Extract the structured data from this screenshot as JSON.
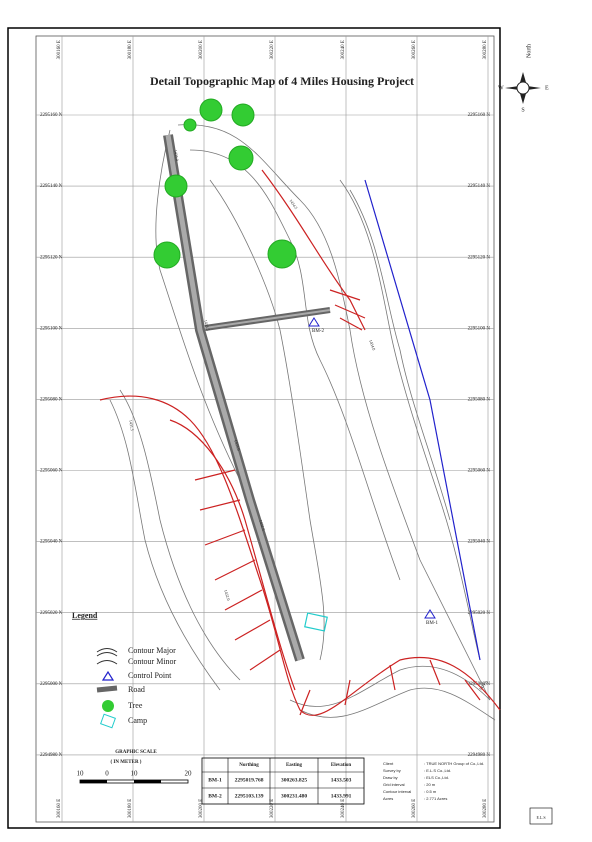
{
  "title": "Detail Topographic Map of 4 Miles Housing Project",
  "compass": {
    "north": "North",
    "south": "S",
    "east": "E",
    "west": "W"
  },
  "northings": [
    "2295160 N",
    "2295140 N",
    "2295120 N",
    "2295100 N",
    "2295080 N",
    "2295060 N",
    "2295040 N",
    "2295020 N",
    "2295000 N",
    "2294980 N"
  ],
  "eastings": [
    "300160 E",
    "300180 E",
    "300200 E",
    "300220 E",
    "300240 E",
    "300260 E",
    "300280 E"
  ],
  "markers": {
    "bm1": "BM-1",
    "bm2": "BM-2"
  },
  "contour_labels": [
    "1435.0",
    "1434.5",
    "1434.0",
    "1433.5",
    "1433.0",
    "1432.5",
    "1432.0",
    "1431.5",
    "1431.0"
  ],
  "legend": {
    "title": "Legend",
    "items": [
      "Contour Major",
      "Contour Minor",
      "Control Point",
      "Road",
      "Tree",
      "Camp"
    ]
  },
  "scale": {
    "title": "GRAPHIC SCALE",
    "unit": "( IN METER )",
    "labels": [
      "10",
      "0",
      "10",
      "20"
    ]
  },
  "table": {
    "header": [
      "Northing",
      "Easting",
      "Elevation"
    ],
    "rows": [
      [
        "BM-1",
        "2295019.768",
        "300263.825",
        "1433.503"
      ],
      [
        "BM-2",
        "2295103.139",
        "300231.480",
        "1433.991"
      ]
    ]
  },
  "info": [
    [
      "Client",
      ": TRUE NORTH Group of Co.,Ltd."
    ],
    [
      "Survey by",
      ": E.L.S Co.,Ltd."
    ],
    [
      "Draw by",
      ": ELS Co.,Ltd."
    ],
    [
      "Grid interval",
      ": 20 m"
    ],
    [
      "Contour interval",
      ": 0.5 m"
    ],
    [
      "Acres",
      ": 2.771 Acres"
    ]
  ],
  "logo": "E.L.S"
}
